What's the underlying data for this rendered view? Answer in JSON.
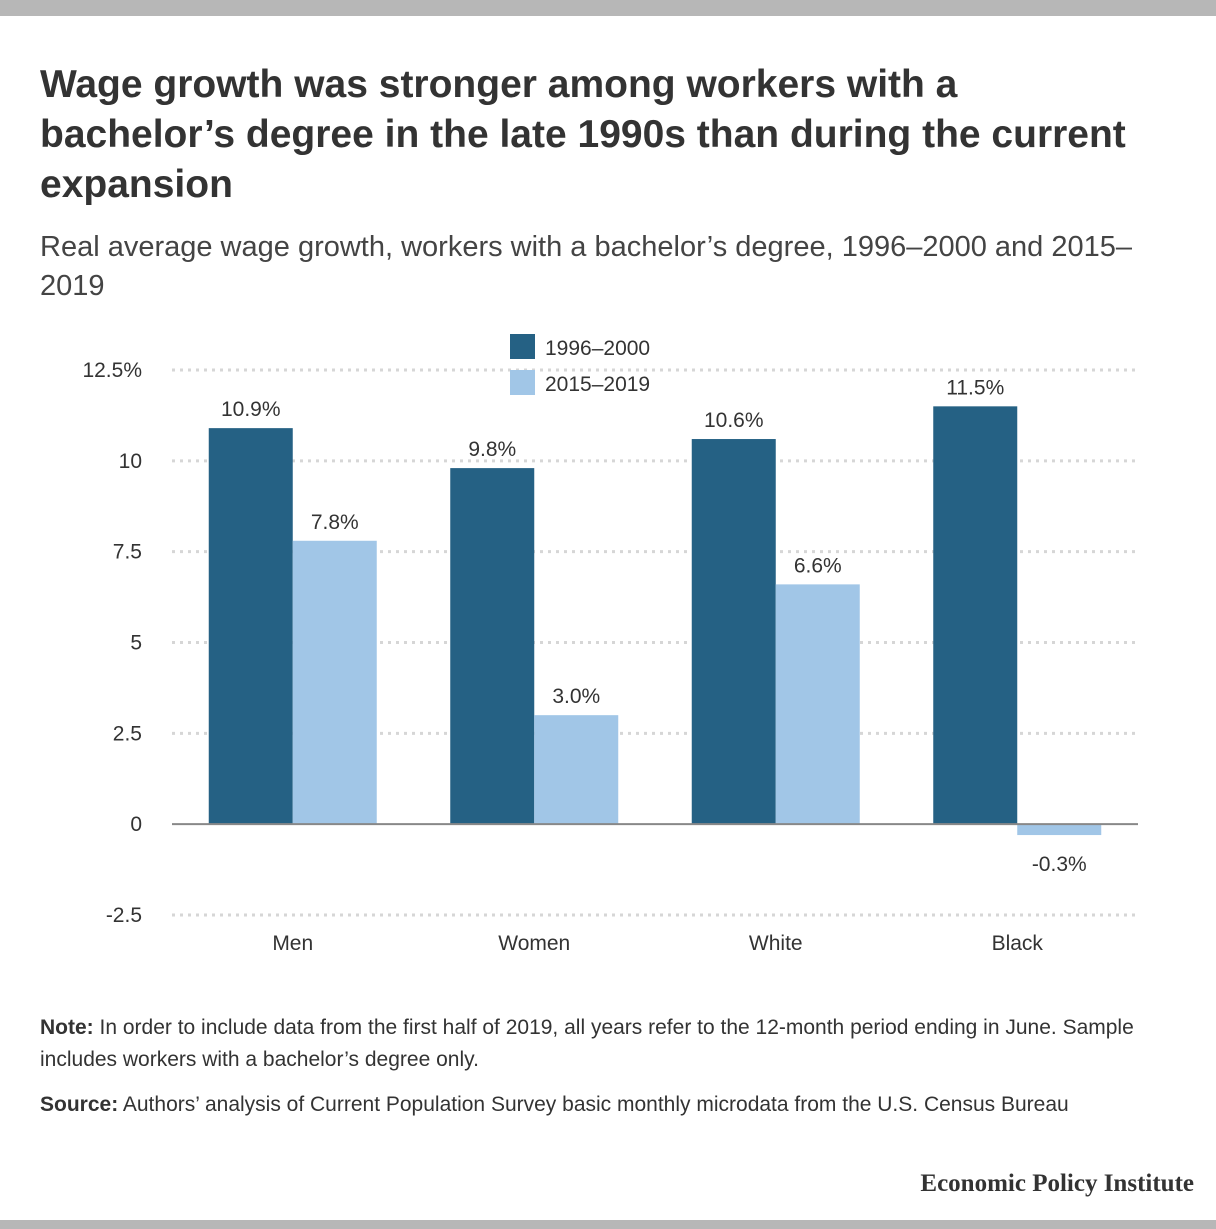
{
  "title": "Wage growth was stronger among workers with a bachelor’s degree in the late 1990s than during the current expansion",
  "subtitle": "Real average wage growth, workers with a bachelor’s degree, 1996–2000 and 2015–2019",
  "chart_data": {
    "type": "bar",
    "categories": [
      "Men",
      "Women",
      "White",
      "Black"
    ],
    "series": [
      {
        "name": "1996–2000",
        "values": [
          10.9,
          9.8,
          10.6,
          11.5
        ],
        "labels": [
          "10.9%",
          "9.8%",
          "10.6%",
          "11.5%"
        ],
        "color": "#256184"
      },
      {
        "name": "2015–2019",
        "values": [
          7.8,
          3.0,
          6.6,
          -0.3
        ],
        "labels": [
          "7.8%",
          "3.0%",
          "6.6%",
          "-0.3%"
        ],
        "color": "#a1c6e7"
      }
    ],
    "ylim": [
      -2.5,
      12.5
    ],
    "yticks": [
      -2.5,
      0,
      2.5,
      5,
      7.5,
      10,
      12.5
    ],
    "ytick_labels": [
      "-2.5",
      "0",
      "2.5",
      "5",
      "7.5",
      "10",
      "12.5%"
    ],
    "grid": true,
    "legend_position": "top-center"
  },
  "note": {
    "label": "Note:",
    "text": " In order to include data from the first half of 2019, all years refer to the 12-month period ending in June. Sample includes workers with a bachelor’s degree only."
  },
  "source": {
    "label": "Source:",
    "text": " Authors’ analysis of Current Population Survey basic monthly microdata from the U.S. Census Bureau"
  },
  "brand": "Economic Policy Institute"
}
